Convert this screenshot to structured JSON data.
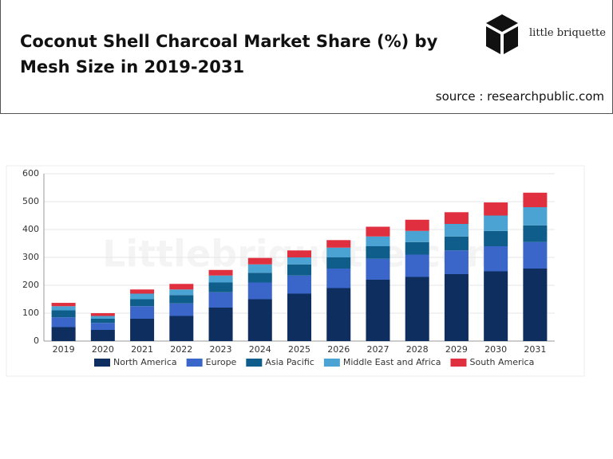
{
  "header": {
    "title": "Coconut Shell Charcoal Market Share (%) by Mesh Size in 2019-2031",
    "logo": "little briquette",
    "source": "source : researchpublic.com"
  },
  "chart_data": {
    "type": "bar",
    "stacked": true,
    "watermark": "Littlebriquette.com",
    "categories": [
      "2019",
      "2020",
      "2021",
      "2022",
      "2023",
      "2024",
      "2025",
      "2026",
      "2027",
      "2028",
      "2029",
      "2030",
      "2031"
    ],
    "series": [
      {
        "name": "North America",
        "color": "#0d2e5e",
        "values": [
          50,
          40,
          80,
          90,
          120,
          150,
          170,
          190,
          220,
          230,
          240,
          250,
          260
        ]
      },
      {
        "name": "Europe",
        "color": "#3a66c9",
        "values": [
          35,
          25,
          45,
          45,
          55,
          60,
          65,
          70,
          75,
          80,
          85,
          90,
          95
        ]
      },
      {
        "name": "Asia Pacific",
        "color": "#0f5d8a",
        "values": [
          25,
          15,
          25,
          30,
          35,
          35,
          40,
          40,
          45,
          45,
          50,
          55,
          60
        ]
      },
      {
        "name": "Middle East and Africa",
        "color": "#4aa3d2",
        "values": [
          15,
          10,
          20,
          20,
          25,
          30,
          25,
          35,
          35,
          40,
          45,
          55,
          65
        ]
      },
      {
        "name": "South America",
        "color": "#e0303f",
        "values": [
          12,
          10,
          15,
          20,
          20,
          23,
          25,
          27,
          35,
          40,
          42,
          47,
          52
        ]
      }
    ],
    "ylim": [
      0,
      600
    ],
    "yticks": [
      0,
      100,
      200,
      300,
      400,
      500,
      600
    ],
    "grid": true
  }
}
